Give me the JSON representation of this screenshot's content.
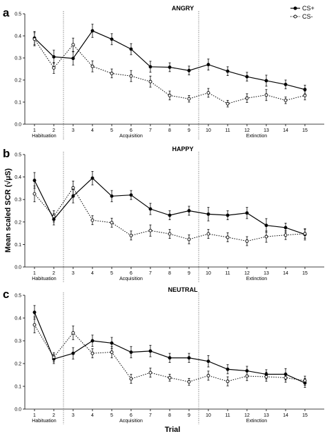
{
  "figure": {
    "ylabel": "Mean scaled SCR (√μS)",
    "xlabel": "Trial",
    "legend": {
      "position": "top-right",
      "entries": [
        "CS+",
        "CS-"
      ]
    },
    "colors": {
      "cs_plus": "#000000",
      "cs_minus": "#000000",
      "axis": "#000000",
      "divider": "#555555"
    }
  },
  "chart_data": [
    {
      "type": "line",
      "panel_label": "a",
      "title": "ANGRY",
      "x": [
        1,
        2,
        3,
        4,
        5,
        6,
        7,
        8,
        9,
        10,
        11,
        12,
        13,
        14,
        15
      ],
      "ylim": [
        0,
        0.5
      ],
      "yticks": [
        0,
        0.1,
        0.2,
        0.3,
        0.4,
        0.5
      ],
      "phases": [
        {
          "name": "Habituation",
          "trials": [
            1,
            2
          ]
        },
        {
          "name": "Acquisition",
          "trials": [
            3,
            9
          ]
        },
        {
          "name": "Extinction",
          "trials": [
            10,
            15
          ]
        }
      ],
      "series": [
        {
          "name": "CS+",
          "style": "solid-filled",
          "values": [
            0.39,
            0.305,
            0.298,
            0.423,
            0.385,
            0.34,
            0.26,
            0.258,
            0.243,
            0.27,
            0.24,
            0.215,
            0.197,
            0.18,
            0.157
          ],
          "errors": [
            0.03,
            0.03,
            0.03,
            0.03,
            0.025,
            0.025,
            0.025,
            0.02,
            0.02,
            0.025,
            0.02,
            0.02,
            0.025,
            0.02,
            0.02
          ]
        },
        {
          "name": "CS-",
          "style": "dotted-open",
          "values": [
            0.385,
            0.255,
            0.36,
            0.262,
            0.23,
            0.218,
            0.193,
            0.13,
            0.115,
            0.142,
            0.093,
            0.118,
            0.132,
            0.108,
            0.13
          ],
          "errors": [
            0.03,
            0.025,
            0.03,
            0.025,
            0.02,
            0.025,
            0.025,
            0.02,
            0.015,
            0.02,
            0.015,
            0.02,
            0.025,
            0.015,
            0.02
          ]
        }
      ]
    },
    {
      "type": "line",
      "panel_label": "b",
      "title": "HAPPY",
      "x": [
        1,
        2,
        3,
        4,
        5,
        6,
        7,
        8,
        9,
        10,
        11,
        12,
        13,
        14,
        15
      ],
      "ylim": [
        0,
        0.5
      ],
      "yticks": [
        0,
        0.1,
        0.2,
        0.3,
        0.4,
        0.5
      ],
      "phases": [
        {
          "name": "Habituation",
          "trials": [
            1,
            2
          ]
        },
        {
          "name": "Acquisition",
          "trials": [
            3,
            9
          ]
        },
        {
          "name": "Extinction",
          "trials": [
            10,
            15
          ]
        }
      ],
      "series": [
        {
          "name": "CS+",
          "style": "solid-filled",
          "values": [
            0.385,
            0.212,
            0.315,
            0.395,
            0.315,
            0.32,
            0.258,
            0.23,
            0.25,
            0.235,
            0.23,
            0.24,
            0.185,
            0.175,
            0.145
          ],
          "errors": [
            0.035,
            0.025,
            0.03,
            0.03,
            0.025,
            0.02,
            0.025,
            0.02,
            0.02,
            0.03,
            0.02,
            0.025,
            0.03,
            0.02,
            0.025
          ]
        },
        {
          "name": "CS-",
          "style": "dotted-open",
          "values": [
            0.325,
            0.225,
            0.352,
            0.208,
            0.197,
            0.14,
            0.162,
            0.147,
            0.123,
            0.147,
            0.132,
            0.115,
            0.135,
            0.142,
            0.148
          ],
          "errors": [
            0.035,
            0.025,
            0.03,
            0.02,
            0.02,
            0.02,
            0.025,
            0.02,
            0.02,
            0.02,
            0.02,
            0.02,
            0.025,
            0.02,
            0.02
          ]
        }
      ]
    },
    {
      "type": "line",
      "panel_label": "c",
      "title": "NEUTRAL",
      "x": [
        1,
        2,
        3,
        4,
        5,
        6,
        7,
        8,
        9,
        10,
        11,
        12,
        13,
        14,
        15
      ],
      "ylim": [
        0,
        0.5
      ],
      "yticks": [
        0,
        0.1,
        0.2,
        0.3,
        0.4,
        0.5
      ],
      "phases": [
        {
          "name": "Habituation",
          "trials": [
            1,
            2
          ]
        },
        {
          "name": "Acquisition",
          "trials": [
            3,
            9
          ]
        },
        {
          "name": "Extinction",
          "trials": [
            10,
            15
          ]
        }
      ],
      "series": [
        {
          "name": "CS+",
          "style": "solid-filled",
          "values": [
            0.425,
            0.22,
            0.245,
            0.3,
            0.29,
            0.25,
            0.255,
            0.225,
            0.225,
            0.21,
            0.175,
            0.168,
            0.153,
            0.153,
            0.115
          ],
          "errors": [
            0.03,
            0.02,
            0.025,
            0.025,
            0.025,
            0.025,
            0.025,
            0.02,
            0.02,
            0.025,
            0.02,
            0.02,
            0.02,
            0.025,
            0.02
          ]
        },
        {
          "name": "CS-",
          "style": "dotted-open",
          "values": [
            0.37,
            0.228,
            0.335,
            0.245,
            0.25,
            0.133,
            0.16,
            0.138,
            0.12,
            0.147,
            0.122,
            0.145,
            0.142,
            0.138,
            0.125
          ],
          "errors": [
            0.035,
            0.02,
            0.03,
            0.02,
            0.025,
            0.02,
            0.02,
            0.015,
            0.015,
            0.02,
            0.02,
            0.02,
            0.02,
            0.02,
            0.02
          ]
        }
      ]
    }
  ]
}
